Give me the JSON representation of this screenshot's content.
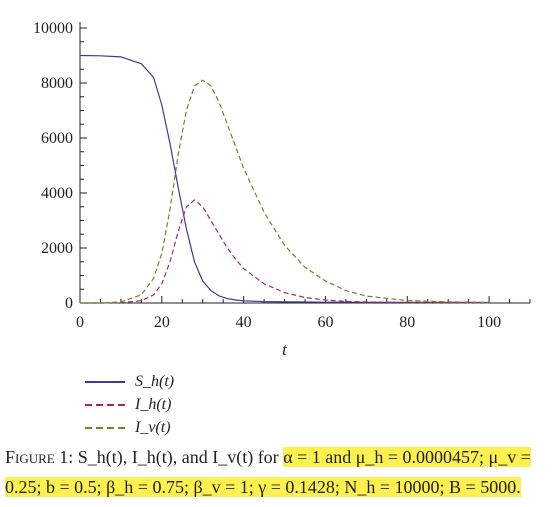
{
  "chart_data": {
    "type": "line",
    "xlabel": "t",
    "ylabel": "",
    "xlim": [
      0,
      110
    ],
    "ylim": [
      0,
      10000
    ],
    "xticks": [
      0,
      20,
      40,
      60,
      80,
      100
    ],
    "yticks": [
      0,
      2000,
      4000,
      6000,
      8000,
      10000
    ],
    "x": [
      0,
      5,
      10,
      15,
      18,
      20,
      22,
      24,
      26,
      28,
      30,
      32,
      34,
      36,
      38,
      40,
      45,
      50,
      55,
      60,
      65,
      70,
      80,
      90,
      100
    ],
    "series": [
      {
        "name": "S_h(t)",
        "style": "solid",
        "color": "#3b3b9e",
        "values": [
          9000,
          8990,
          8950,
          8700,
          8200,
          7200,
          5800,
          4200,
          2700,
          1500,
          800,
          450,
          260,
          160,
          110,
          80,
          50,
          40,
          35,
          30,
          28,
          25,
          22,
          20,
          18
        ]
      },
      {
        "name": "I_h(t)",
        "style": "dashed",
        "color": "#9e2a68",
        "values": [
          0,
          0,
          10,
          80,
          300,
          700,
          1500,
          2600,
          3500,
          3750,
          3500,
          3000,
          2500,
          2000,
          1600,
          1250,
          700,
          380,
          200,
          110,
          60,
          35,
          15,
          8,
          5
        ]
      },
      {
        "name": "I_v(t)",
        "style": "dashed",
        "color": "#6b8a1e",
        "values": [
          0,
          0,
          40,
          300,
          900,
          1800,
          3400,
          5400,
          7000,
          7900,
          8100,
          7900,
          7300,
          6500,
          5700,
          4900,
          3300,
          2100,
          1300,
          800,
          450,
          250,
          90,
          40,
          20
        ]
      }
    ]
  },
  "legend": [
    {
      "label": "S_h(t)",
      "color": "#3b3b9e",
      "style": "solid"
    },
    {
      "label": "I_h(t)",
      "color": "#9e2a68",
      "style": "dashed"
    },
    {
      "label": "I_v(t)",
      "color": "#6b8a1e",
      "style": "dashed"
    }
  ],
  "caption": {
    "lead": "Figure 1:",
    "text": "S_h(t), I_h(t), and I_v(t) for",
    "highlighted": "α = 1 and μ_h = 0.0000457; μ_v = 0.25; b = 0.5; β_h = 0.75; β_v = 1; γ = 0.1428; N_h = 10000; B = 5000."
  }
}
